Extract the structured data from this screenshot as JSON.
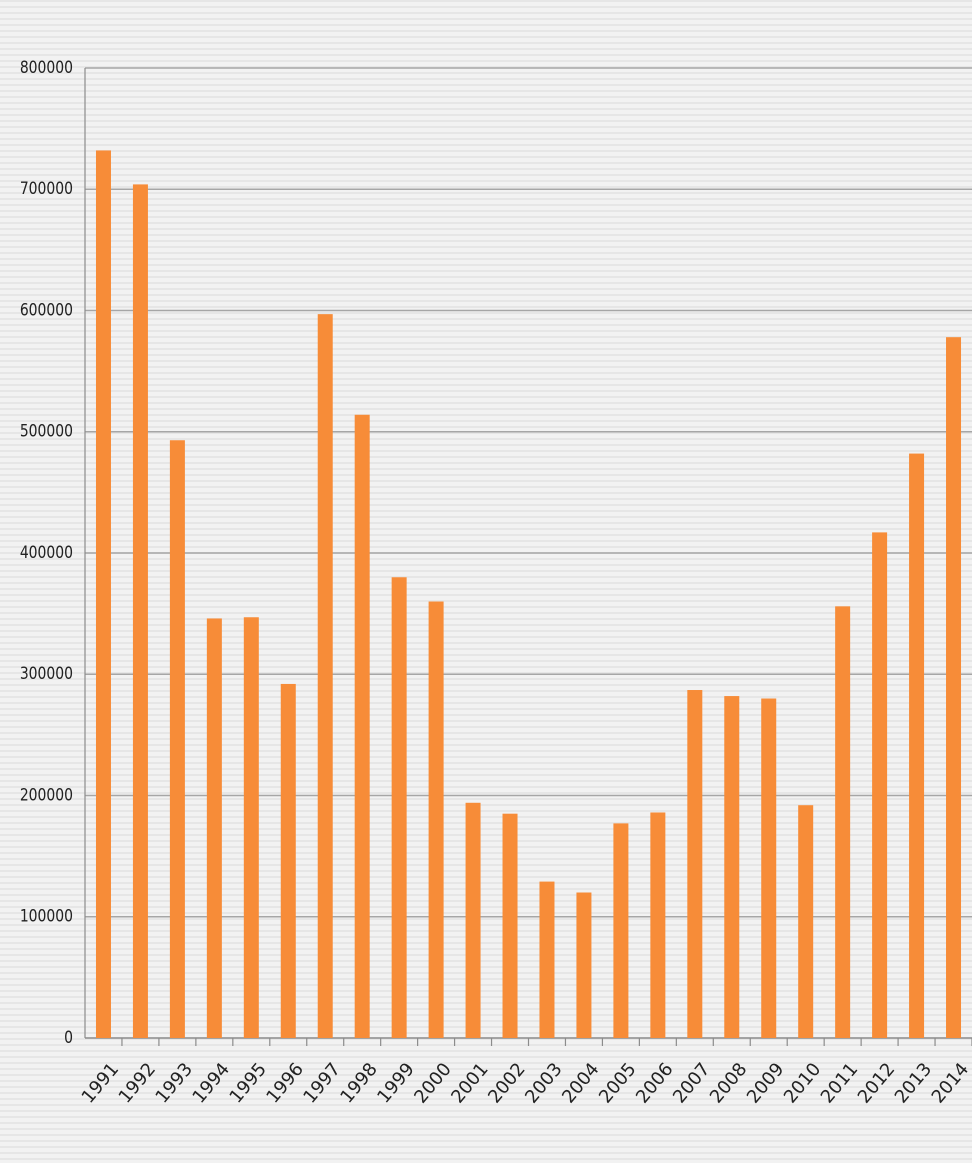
{
  "chart_data": {
    "type": "bar",
    "categories": [
      "1991",
      "1992",
      "1993",
      "1994",
      "1995",
      "1996",
      "1997",
      "1998",
      "1999",
      "2000",
      "2001",
      "2002",
      "2003",
      "2004",
      "2005",
      "2006",
      "2007",
      "2008",
      "2009",
      "2010",
      "2011",
      "2012",
      "2013",
      "2014"
    ],
    "values": [
      732000,
      704000,
      493000,
      346000,
      347000,
      292000,
      597000,
      514000,
      380000,
      360000,
      194000,
      185000,
      129000,
      120000,
      177000,
      186000,
      287000,
      282000,
      280000,
      192000,
      356000,
      417000,
      482000,
      578000
    ],
    "color": "#f78c38",
    "ylim": [
      0,
      800000
    ],
    "yticks": [
      0,
      100000,
      200000,
      300000,
      400000,
      500000,
      600000,
      700000,
      800000
    ],
    "grid": true
  }
}
